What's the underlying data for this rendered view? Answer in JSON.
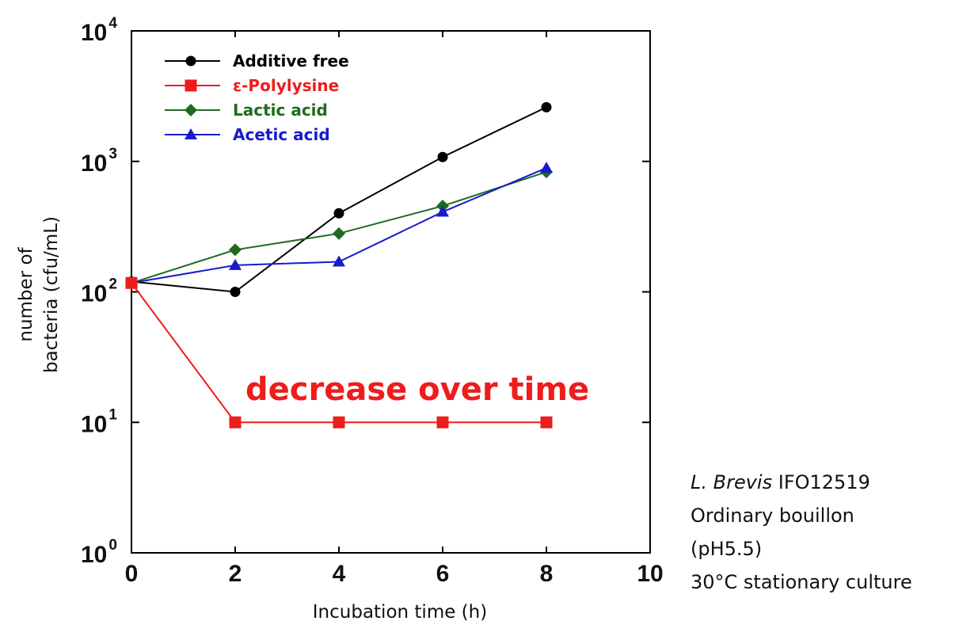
{
  "chart_data": {
    "type": "line",
    "xlabel": "Incubation time (h)",
    "ylabel_lines": [
      "number of",
      "bacteria (cfu/mL)"
    ],
    "xlim": [
      0,
      10
    ],
    "ylim": [
      1,
      10000
    ],
    "y_scale": "log",
    "x_ticks": [
      "0",
      "2",
      "4",
      "6",
      "8",
      "10"
    ],
    "y_ticks": [
      {
        "base": "10",
        "exp": "0"
      },
      {
        "base": "10",
        "exp": "1"
      },
      {
        "base": "10",
        "exp": "2"
      },
      {
        "base": "10",
        "exp": "3"
      },
      {
        "base": "10",
        "exp": "4"
      }
    ],
    "legend_position": "top-left",
    "series": [
      {
        "name": "Additive free",
        "color": "#000000",
        "marker": "circle",
        "x": [
          0,
          2,
          4,
          6,
          8
        ],
        "y": [
          120,
          100,
          400,
          1080,
          2600
        ]
      },
      {
        "name": "ε-Polylysine",
        "color": "#ee1c1c",
        "marker": "square",
        "x": [
          0,
          2,
          4,
          6,
          8
        ],
        "y": [
          117,
          10,
          10,
          10,
          10
        ]
      },
      {
        "name": "Lactic acid",
        "color": "#1e6b1e",
        "marker": "diamond",
        "x": [
          0,
          2,
          4,
          6,
          8
        ],
        "y": [
          117,
          210,
          280,
          455,
          830
        ]
      },
      {
        "name": "Acetic acid",
        "color": "#1a1acc",
        "marker": "triangle",
        "x": [
          0,
          2,
          4,
          6,
          8
        ],
        "y": [
          117,
          160,
          170,
          410,
          890
        ]
      }
    ],
    "annotation": "decrease over time"
  },
  "conditions": {
    "species": "L. Brevis",
    "strain": " IFO12519",
    "medium": "Ordinary bouillon",
    "ph": "(pH5.5)",
    "culture": "30°C stationary culture"
  }
}
